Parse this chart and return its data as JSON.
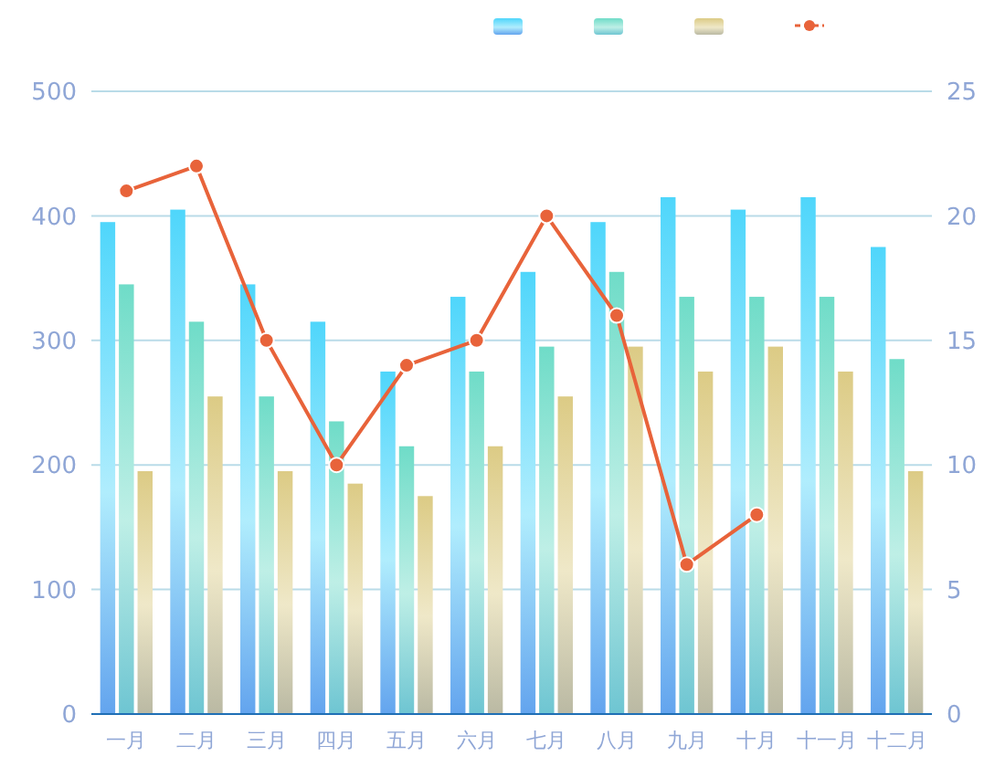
{
  "chart_data": {
    "type": "bar",
    "categories": [
      "一月",
      "二月",
      "三月",
      "四月",
      "五月",
      "六月",
      "七月",
      "八月",
      "九月",
      "十月",
      "十一月",
      "十二月"
    ],
    "series": [
      {
        "color": "#4fd6fb",
        "values": [
          395,
          405,
          345,
          315,
          275,
          335,
          355,
          395,
          415,
          405,
          415,
          375
        ]
      },
      {
        "color": "#6fdcc8",
        "values": [
          345,
          315,
          255,
          235,
          215,
          275,
          295,
          355,
          335,
          335,
          335,
          285
        ]
      },
      {
        "color": "#dccb85",
        "values": [
          195,
          255,
          195,
          185,
          175,
          215,
          255,
          295,
          275,
          295,
          275,
          195
        ]
      },
      {
        "type": "line",
        "axis": "y2",
        "color": "#e8633a",
        "marker": "circle",
        "values": [
          21,
          22,
          15,
          10,
          14,
          15,
          20,
          16,
          6,
          8,
          null,
          null
        ]
      }
    ],
    "ylim": [
      0,
      500
    ],
    "yticks": [
      0,
      100,
      200,
      300,
      400,
      500
    ],
    "y2lim": [
      0,
      25
    ],
    "y2ticks": [
      0,
      5,
      10,
      15,
      20,
      25
    ],
    "grid": "y"
  }
}
